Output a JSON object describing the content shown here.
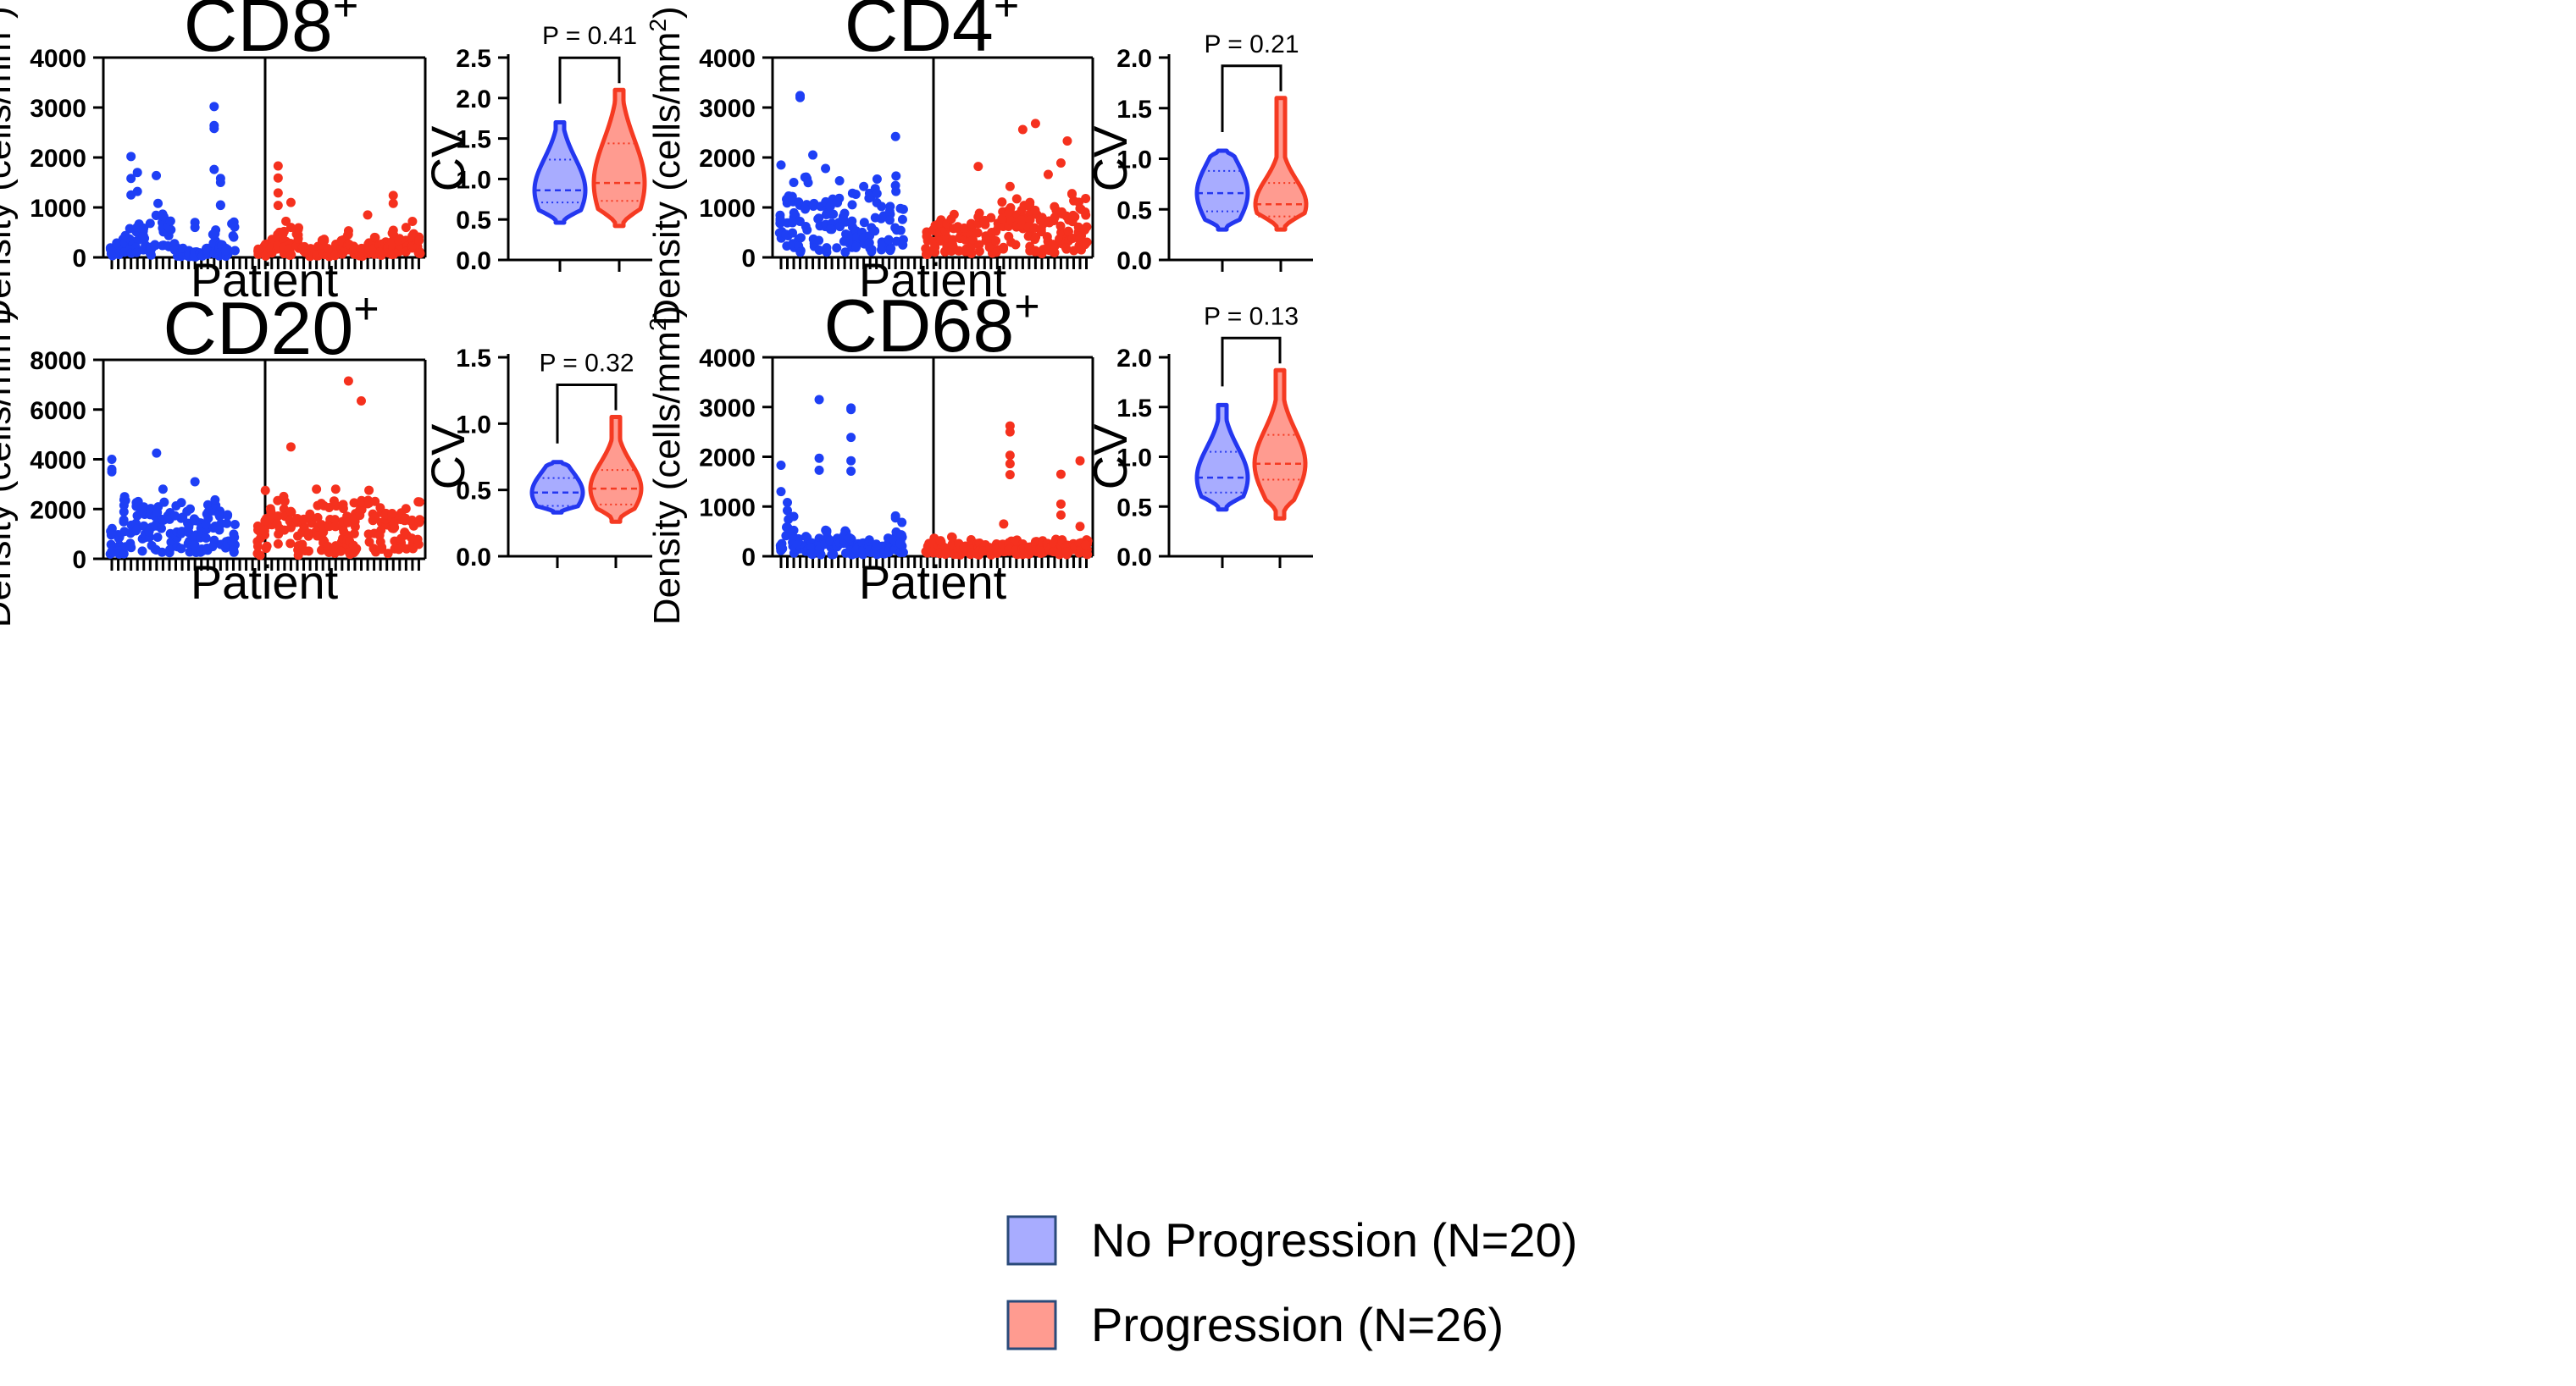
{
  "colors": {
    "blue": "#1e3ff5",
    "red": "#f5311e",
    "blue_fill": "#a8acff",
    "red_fill": "#ff9b90",
    "blue_stroke": "#2437f0",
    "red_stroke": "#f53a22"
  },
  "axis_patient_label": "Patient",
  "axis_cv_label": "CV",
  "legend": {
    "items": [
      {
        "label": "No Progression (N=20)",
        "color": "#a8acff"
      },
      {
        "label": "Progression (N=26)",
        "color": "#ff9b90"
      }
    ]
  },
  "chart_data": [
    {
      "type": "scatter",
      "title": "CD8",
      "title_sup": "+",
      "xlabel": "Patient",
      "ylabel": "Density (cells/mm²)",
      "ylim": [
        0,
        4000
      ],
      "yticks": [
        "0",
        "1000",
        "2000",
        "3000",
        "4000"
      ],
      "seed": 11,
      "blue_patients": 20,
      "red_patients": 26,
      "blue_profile": [
        120,
        160,
        250,
        400,
        500,
        350,
        150,
        950,
        600,
        400,
        150,
        100,
        80,
        60,
        50,
        100,
        300,
        150,
        100,
        450
      ],
      "red_profile": [
        100,
        150,
        200,
        300,
        450,
        250,
        350,
        150,
        100,
        120,
        200,
        100,
        150,
        200,
        300,
        120,
        100,
        200,
        250,
        150,
        180,
        300,
        220,
        200,
        300,
        250
      ],
      "blue_outliers": [
        [
          4,
          2020
        ],
        [
          4,
          1580
        ],
        [
          4,
          1250
        ],
        [
          5,
          1700
        ],
        [
          5,
          1320
        ],
        [
          7,
          680
        ],
        [
          14,
          700
        ],
        [
          14,
          600
        ],
        [
          17,
          3020
        ],
        [
          17,
          2640
        ],
        [
          17,
          2580
        ],
        [
          17,
          1760
        ],
        [
          18,
          1580
        ],
        [
          18,
          1500
        ],
        [
          18,
          1040
        ],
        [
          18,
          1050
        ]
      ],
      "red_outliers": [
        [
          4,
          1830
        ],
        [
          4,
          1590
        ],
        [
          4,
          1290
        ],
        [
          4,
          1040
        ],
        [
          6,
          1100
        ],
        [
          6,
          600
        ],
        [
          22,
          1240
        ],
        [
          22,
          1080
        ],
        [
          18,
          850
        ],
        [
          24,
          600
        ],
        [
          25,
          720
        ]
      ],
      "violin": {
        "ylim": [
          0,
          2.5
        ],
        "yticks": [
          "0.0",
          "0.5",
          "1.0",
          "1.5",
          "2.0",
          "2.5"
        ],
        "p_label": "P = 0.41",
        "blue": {
          "min": 0.46,
          "max": 1.7,
          "median": 0.86,
          "q1": 0.71,
          "q3": 1.24
        },
        "red": {
          "min": 0.42,
          "max": 2.1,
          "median": 0.95,
          "q1": 0.73,
          "q3": 1.44
        }
      }
    },
    {
      "type": "scatter",
      "title": "CD4",
      "title_sup": "+",
      "xlabel": "Patient",
      "ylabel": "Density (cells/mm²)",
      "ylim": [
        0,
        4000
      ],
      "yticks": [
        "0",
        "1000",
        "2000",
        "3000",
        "4000"
      ],
      "seed": 23,
      "blue_patients": 20,
      "red_patients": 26,
      "blue_profile": [
        500,
        800,
        700,
        600,
        900,
        1000,
        650,
        700,
        800,
        900,
        600,
        700,
        800,
        600,
        700,
        900,
        650,
        800,
        1000,
        600
      ],
      "red_profile": [
        300,
        450,
        500,
        400,
        500,
        400,
        350,
        450,
        500,
        400,
        500,
        550,
        600,
        550,
        650,
        700,
        600,
        650,
        500,
        450,
        550,
        500,
        450,
        700,
        600,
        650
      ],
      "blue_outliers": [
        [
          4,
          3240
        ],
        [
          4,
          3200
        ],
        [
          6,
          2050
        ],
        [
          19,
          2420
        ],
        [
          1,
          1850
        ],
        [
          3,
          1500
        ],
        [
          8,
          1780
        ],
        [
          14,
          1420
        ]
      ],
      "red_outliers": [
        [
          16,
          2560
        ],
        [
          18,
          2680
        ],
        [
          23,
          2330
        ],
        [
          22,
          1890
        ],
        [
          9,
          1820
        ],
        [
          14,
          1420
        ],
        [
          20,
          1660
        ]
      ],
      "violin": {
        "ylim": [
          0,
          2.0
        ],
        "yticks": [
          "0.0",
          "0.5",
          "1.0",
          "1.5",
          "2.0"
        ],
        "p_label": "P = 0.21",
        "blue": {
          "min": 0.3,
          "max": 1.08,
          "median": 0.66,
          "q1": 0.48,
          "q3": 0.88
        },
        "red": {
          "min": 0.3,
          "max": 1.6,
          "median": 0.55,
          "q1": 0.43,
          "q3": 0.76
        }
      }
    },
    {
      "type": "scatter",
      "title": "CD20",
      "title_sup": "+",
      "xlabel": "Patient",
      "ylabel": "Density (cells/mm²)",
      "ylim": [
        0,
        8000
      ],
      "yticks": [
        "0",
        "2000",
        "4000",
        "6000",
        "8000"
      ],
      "seed": 37,
      "blue_patients": 20,
      "red_patients": 26,
      "blue_profile": [
        900,
        1100,
        1300,
        1400,
        1300,
        1200,
        1100,
        1400,
        1300,
        1100,
        1200,
        1300,
        1100,
        900,
        1000,
        1200,
        1300,
        1100,
        1000,
        900
      ],
      "red_profile": [
        800,
        1000,
        1200,
        1300,
        1400,
        1100,
        900,
        1000,
        1200,
        1300,
        1400,
        1500,
        1300,
        1200,
        1100,
        1300,
        1400,
        1500,
        1300,
        1200,
        1100,
        1000,
        1100,
        1200,
        1300,
        1400
      ],
      "blue_outliers": [
        [
          1,
          4000
        ],
        [
          1,
          3600
        ],
        [
          1,
          3500
        ],
        [
          8,
          4250
        ],
        [
          3,
          2500
        ],
        [
          9,
          2800
        ],
        [
          14,
          3100
        ]
      ],
      "red_outliers": [
        [
          6,
          4500
        ],
        [
          15,
          7150
        ],
        [
          17,
          6350
        ],
        [
          2,
          2750
        ],
        [
          10,
          2800
        ],
        [
          13,
          2800
        ]
      ],
      "violin": {
        "ylim": [
          0,
          1.5
        ],
        "yticks": [
          "0.0",
          "0.5",
          "1.0",
          "1.5"
        ],
        "p_label": "P = 0.32",
        "blue": {
          "min": 0.33,
          "max": 0.71,
          "median": 0.48,
          "q1": 0.38,
          "q3": 0.59
        },
        "red": {
          "min": 0.26,
          "max": 1.05,
          "median": 0.51,
          "q1": 0.39,
          "q3": 0.65
        }
      }
    },
    {
      "type": "scatter",
      "title": "CD68",
      "title_sup": "+",
      "xlabel": "Patient",
      "ylabel": "Density (cells/mm²)",
      "ylim": [
        0,
        4000
      ],
      "yticks": [
        "0",
        "1000",
        "2000",
        "3000",
        "4000"
      ],
      "seed": 51,
      "blue_patients": 20,
      "red_patients": 26,
      "blue_profile": [
        150,
        400,
        300,
        200,
        250,
        150,
        200,
        300,
        180,
        250,
        300,
        200,
        150,
        180,
        200,
        150,
        120,
        200,
        300,
        250
      ],
      "red_profile": [
        150,
        200,
        180,
        150,
        220,
        150,
        120,
        180,
        150,
        130,
        120,
        160,
        140,
        200,
        180,
        150,
        130,
        160,
        180,
        150,
        200,
        180,
        120,
        150,
        180,
        200
      ],
      "blue_outliers": [
        [
          1,
          1300
        ],
        [
          1,
          1830
        ],
        [
          2,
          1080
        ],
        [
          2,
          920
        ],
        [
          3,
          800
        ],
        [
          7,
          3150
        ],
        [
          7,
          1970
        ],
        [
          7,
          1730
        ],
        [
          12,
          2980
        ],
        [
          12,
          2950
        ],
        [
          12,
          2390
        ],
        [
          12,
          1920
        ],
        [
          12,
          1710
        ],
        [
          19,
          810
        ],
        [
          19,
          770
        ],
        [
          20,
          680
        ]
      ],
      "red_outliers": [
        [
          14,
          2620
        ],
        [
          14,
          2500
        ],
        [
          14,
          2030
        ],
        [
          14,
          1860
        ],
        [
          14,
          1640
        ],
        [
          22,
          1650
        ],
        [
          22,
          1050
        ],
        [
          22,
          830
        ],
        [
          25,
          1920
        ],
        [
          25,
          600
        ],
        [
          13,
          650
        ]
      ],
      "violin": {
        "ylim": [
          0,
          2.0
        ],
        "yticks": [
          "0.0",
          "0.5",
          "1.0",
          "1.5",
          "2.0"
        ],
        "p_label": "P = 0.13",
        "blue": {
          "min": 0.47,
          "max": 1.52,
          "median": 0.79,
          "q1": 0.64,
          "q3": 1.05
        },
        "red": {
          "min": 0.38,
          "max": 1.87,
          "median": 0.93,
          "q1": 0.77,
          "q3": 1.22
        }
      }
    }
  ]
}
